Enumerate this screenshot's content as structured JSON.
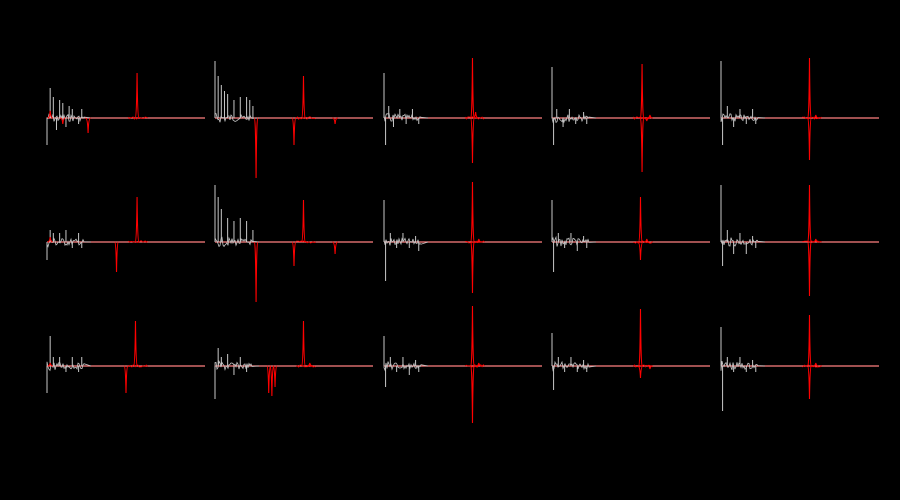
{
  "background": "#000000",
  "colors": {
    "gray_trace": "#c8c8c8",
    "red_trace": "#ff0000",
    "baseline": "#ff8080"
  },
  "chart_data": {
    "type": "line",
    "title": "",
    "xlabel": "",
    "ylabel": "",
    "grid": false,
    "legend": "none",
    "rows": 3,
    "cols": 5,
    "panels": [
      {
        "id": "r1c1",
        "gray_spikes": [
          [
            0.0,
            -0.45
          ],
          [
            0.02,
            0.5
          ],
          [
            0.04,
            0.35
          ],
          [
            0.06,
            -0.2
          ],
          [
            0.08,
            0.3
          ],
          [
            0.1,
            0.25
          ],
          [
            0.12,
            -0.15
          ],
          [
            0.14,
            0.2
          ],
          [
            0.16,
            0.15
          ],
          [
            0.2,
            -0.1
          ],
          [
            0.22,
            0.15
          ]
        ],
        "red_spikes": [
          [
            0.02,
            0.12
          ],
          [
            0.1,
            -0.1
          ],
          [
            0.26,
            -0.25
          ],
          [
            0.57,
            0.75
          ]
        ]
      },
      {
        "id": "r1c2",
        "gray_spikes": [
          [
            0.0,
            0.95
          ],
          [
            0.02,
            0.7
          ],
          [
            0.04,
            0.55
          ],
          [
            0.06,
            0.45
          ],
          [
            0.08,
            0.4
          ],
          [
            0.12,
            0.3
          ],
          [
            0.16,
            0.35
          ],
          [
            0.2,
            0.35
          ],
          [
            0.22,
            0.3
          ],
          [
            0.24,
            0.2
          ]
        ],
        "red_spikes": [
          [
            0.26,
            -1.0
          ],
          [
            0.5,
            -0.45
          ],
          [
            0.56,
            0.7
          ],
          [
            0.76,
            -0.1
          ]
        ]
      },
      {
        "id": "r1c3",
        "gray_spikes": [
          [
            0.0,
            0.75
          ],
          [
            0.01,
            -0.45
          ],
          [
            0.03,
            0.2
          ],
          [
            0.06,
            -0.15
          ],
          [
            0.1,
            0.15
          ],
          [
            0.14,
            -0.1
          ],
          [
            0.18,
            0.15
          ],
          [
            0.22,
            -0.1
          ]
        ],
        "red_spikes": [
          [
            0.56,
            1.0
          ],
          [
            0.56,
            -0.75
          ],
          [
            0.58,
            0.1
          ]
        ]
      },
      {
        "id": "r1c4",
        "gray_spikes": [
          [
            0.0,
            0.85
          ],
          [
            0.01,
            -0.45
          ],
          [
            0.03,
            0.15
          ],
          [
            0.07,
            -0.15
          ],
          [
            0.11,
            0.15
          ],
          [
            0.15,
            -0.1
          ],
          [
            0.2,
            0.1
          ],
          [
            0.22,
            -0.1
          ]
        ],
        "red_spikes": [
          [
            0.57,
            0.9
          ],
          [
            0.57,
            -0.9
          ],
          [
            0.6,
            -0.05
          ],
          [
            0.62,
            0.05
          ]
        ]
      },
      {
        "id": "r1c5",
        "gray_spikes": [
          [
            0.0,
            0.95
          ],
          [
            0.01,
            -0.45
          ],
          [
            0.04,
            0.2
          ],
          [
            0.08,
            -0.15
          ],
          [
            0.12,
            0.15
          ],
          [
            0.16,
            -0.1
          ],
          [
            0.2,
            0.15
          ],
          [
            0.22,
            -0.1
          ]
        ],
        "red_spikes": [
          [
            0.56,
            1.0
          ],
          [
            0.56,
            -0.7
          ],
          [
            0.6,
            0.05
          ]
        ]
      },
      {
        "id": "r2c1",
        "gray_spikes": [
          [
            0.0,
            -0.3
          ],
          [
            0.02,
            0.2
          ],
          [
            0.04,
            0.15
          ],
          [
            0.08,
            0.15
          ],
          [
            0.12,
            0.2
          ],
          [
            0.16,
            -0.1
          ],
          [
            0.2,
            0.15
          ],
          [
            0.22,
            -0.1
          ]
        ],
        "red_spikes": [
          [
            0.02,
            0.08
          ],
          [
            0.44,
            -0.5
          ],
          [
            0.57,
            0.75
          ]
        ]
      },
      {
        "id": "r2c2",
        "gray_spikes": [
          [
            0.0,
            0.95
          ],
          [
            0.02,
            0.75
          ],
          [
            0.04,
            0.55
          ],
          [
            0.08,
            0.4
          ],
          [
            0.12,
            0.35
          ],
          [
            0.16,
            0.4
          ],
          [
            0.2,
            0.35
          ],
          [
            0.24,
            0.2
          ]
        ],
        "red_spikes": [
          [
            0.26,
            -1.0
          ],
          [
            0.5,
            -0.4
          ],
          [
            0.56,
            0.7
          ],
          [
            0.76,
            -0.2
          ]
        ]
      },
      {
        "id": "r2c3",
        "gray_spikes": [
          [
            0.0,
            0.7
          ],
          [
            0.01,
            -0.65
          ],
          [
            0.04,
            0.15
          ],
          [
            0.08,
            -0.1
          ],
          [
            0.12,
            0.15
          ],
          [
            0.16,
            -0.1
          ],
          [
            0.2,
            0.1
          ],
          [
            0.22,
            -0.15
          ]
        ],
        "red_spikes": [
          [
            0.56,
            1.0
          ],
          [
            0.56,
            -0.85
          ],
          [
            0.6,
            0.05
          ]
        ]
      },
      {
        "id": "r2c4",
        "gray_spikes": [
          [
            0.0,
            0.7
          ],
          [
            0.01,
            -0.5
          ],
          [
            0.04,
            0.15
          ],
          [
            0.08,
            -0.1
          ],
          [
            0.12,
            0.15
          ],
          [
            0.16,
            -0.15
          ],
          [
            0.2,
            0.1
          ],
          [
            0.22,
            -0.1
          ]
        ],
        "red_spikes": [
          [
            0.56,
            0.75
          ],
          [
            0.56,
            -0.3
          ],
          [
            0.6,
            0.05
          ]
        ]
      },
      {
        "id": "r2c5",
        "gray_spikes": [
          [
            0.0,
            0.95
          ],
          [
            0.01,
            -0.4
          ],
          [
            0.04,
            0.2
          ],
          [
            0.08,
            -0.2
          ],
          [
            0.12,
            0.15
          ],
          [
            0.16,
            -0.2
          ],
          [
            0.2,
            0.1
          ],
          [
            0.22,
            -0.1
          ]
        ],
        "red_spikes": [
          [
            0.56,
            0.95
          ],
          [
            0.56,
            -0.9
          ],
          [
            0.6,
            0.05
          ]
        ]
      },
      {
        "id": "r3c1",
        "gray_spikes": [
          [
            0.0,
            -0.45
          ],
          [
            0.02,
            0.5
          ],
          [
            0.04,
            0.15
          ],
          [
            0.08,
            0.15
          ],
          [
            0.12,
            -0.1
          ],
          [
            0.16,
            0.15
          ],
          [
            0.2,
            -0.1
          ],
          [
            0.22,
            0.15
          ]
        ],
        "red_spikes": [
          [
            0.02,
            0.05
          ],
          [
            0.5,
            -0.45
          ],
          [
            0.56,
            0.75
          ]
        ]
      },
      {
        "id": "r3c2",
        "gray_spikes": [
          [
            0.0,
            -0.55
          ],
          [
            0.02,
            0.3
          ],
          [
            0.04,
            0.15
          ],
          [
            0.08,
            0.2
          ],
          [
            0.12,
            -0.15
          ],
          [
            0.16,
            0.15
          ],
          [
            0.2,
            -0.1
          ]
        ],
        "red_spikes": [
          [
            0.34,
            -0.45
          ],
          [
            0.36,
            -0.5
          ],
          [
            0.38,
            -0.35
          ],
          [
            0.56,
            0.75
          ],
          [
            0.6,
            0.05
          ]
        ]
      },
      {
        "id": "r3c3",
        "gray_spikes": [
          [
            0.0,
            0.5
          ],
          [
            0.01,
            -0.35
          ],
          [
            0.04,
            0.15
          ],
          [
            0.08,
            -0.1
          ],
          [
            0.12,
            0.15
          ],
          [
            0.16,
            -0.15
          ],
          [
            0.2,
            0.1
          ],
          [
            0.22,
            -0.1
          ]
        ],
        "red_spikes": [
          [
            0.56,
            1.0
          ],
          [
            0.56,
            -0.95
          ],
          [
            0.6,
            0.05
          ]
        ]
      },
      {
        "id": "r3c4",
        "gray_spikes": [
          [
            0.0,
            0.55
          ],
          [
            0.01,
            -0.4
          ],
          [
            0.04,
            0.15
          ],
          [
            0.08,
            -0.1
          ],
          [
            0.12,
            0.15
          ],
          [
            0.16,
            -0.1
          ],
          [
            0.2,
            0.1
          ],
          [
            0.22,
            -0.1
          ]
        ],
        "red_spikes": [
          [
            0.56,
            0.95
          ],
          [
            0.56,
            -0.2
          ],
          [
            0.62,
            -0.05
          ]
        ]
      },
      {
        "id": "r3c5",
        "gray_spikes": [
          [
            0.0,
            0.65
          ],
          [
            0.01,
            -0.75
          ],
          [
            0.04,
            0.15
          ],
          [
            0.08,
            -0.1
          ],
          [
            0.12,
            0.15
          ],
          [
            0.16,
            -0.1
          ],
          [
            0.2,
            0.1
          ],
          [
            0.22,
            -0.1
          ]
        ],
        "red_spikes": [
          [
            0.56,
            0.85
          ],
          [
            0.56,
            -0.55
          ],
          [
            0.6,
            0.05
          ]
        ]
      }
    ]
  }
}
